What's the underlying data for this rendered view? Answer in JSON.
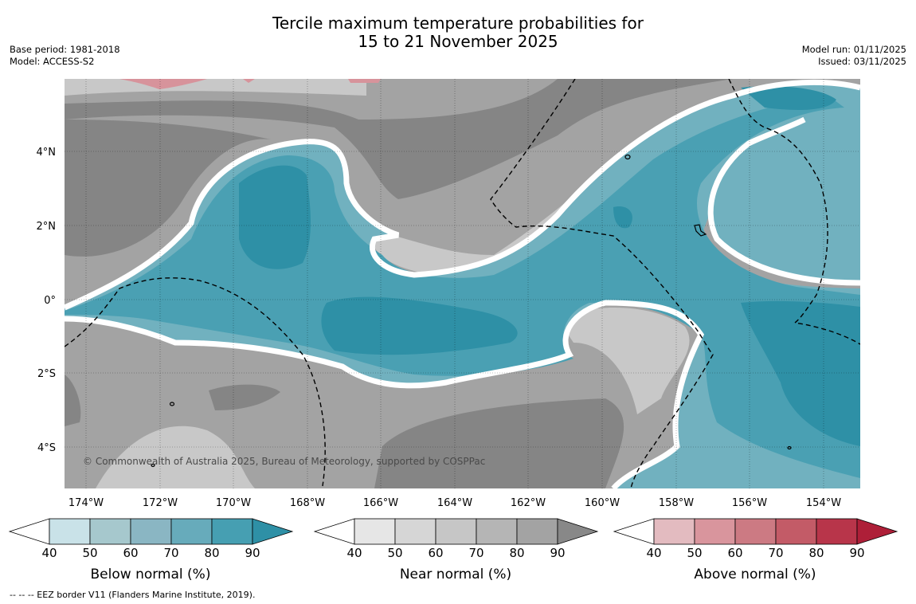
{
  "title": {
    "line1": "Tercile maximum temperature probabilities for",
    "line2": "15 to 21 November 2025"
  },
  "meta_left": {
    "base_period": "Base period: 1981-2018",
    "model": "Model: ACCESS-S2"
  },
  "meta_right": {
    "model_run": "Model run: 01/11/2025",
    "issued": "Issued: 03/11/2025"
  },
  "map": {
    "lon_ticks": [
      "174°W",
      "172°W",
      "170°W",
      "168°W",
      "166°W",
      "164°W",
      "162°W",
      "160°W",
      "158°W",
      "156°W",
      "154°W"
    ],
    "lat_ticks": [
      "4°N",
      "2°N",
      "0°",
      "2°S",
      "4°S"
    ],
    "credit": "© Commonwealth of Australia 2025, Bureau of Meteorology, supported by COSPPac",
    "colors": {
      "grey_light": "#c8c8c8",
      "grey_mid": "#a3a3a3",
      "grey_dark": "#858585",
      "teal_1": "#a9c9ce",
      "teal_2": "#71b1bf",
      "teal_3": "#4aa0b3",
      "teal_4": "#2e90a6",
      "red_1": "#d7939b"
    }
  },
  "colorbars": [
    {
      "title": "Below normal (%)",
      "labels": [
        "40",
        "50",
        "60",
        "70",
        "80",
        "90"
      ],
      "colors": [
        "#ffffff",
        "#c9e2e8",
        "#a6c8cd",
        "#8ab6c3",
        "#67abbb",
        "#469fb2",
        "#2e90a6"
      ]
    },
    {
      "title": "Near normal (%)",
      "labels": [
        "40",
        "50",
        "60",
        "70",
        "80",
        "90"
      ],
      "colors": [
        "#ffffff",
        "#e6e6e6",
        "#d6d6d6",
        "#c6c6c6",
        "#b5b5b5",
        "#a3a3a3",
        "#888888"
      ]
    },
    {
      "title": "Above normal (%)",
      "labels": [
        "40",
        "50",
        "60",
        "70",
        "80",
        "90"
      ],
      "colors": [
        "#ffffff",
        "#e3bbc0",
        "#d9959d",
        "#cc7a83",
        "#c35b67",
        "#b8354a",
        "#ae1f38"
      ]
    }
  ],
  "footer": "--  --  -- EEZ border V11 (Flanders Marine Institute, 2019)."
}
